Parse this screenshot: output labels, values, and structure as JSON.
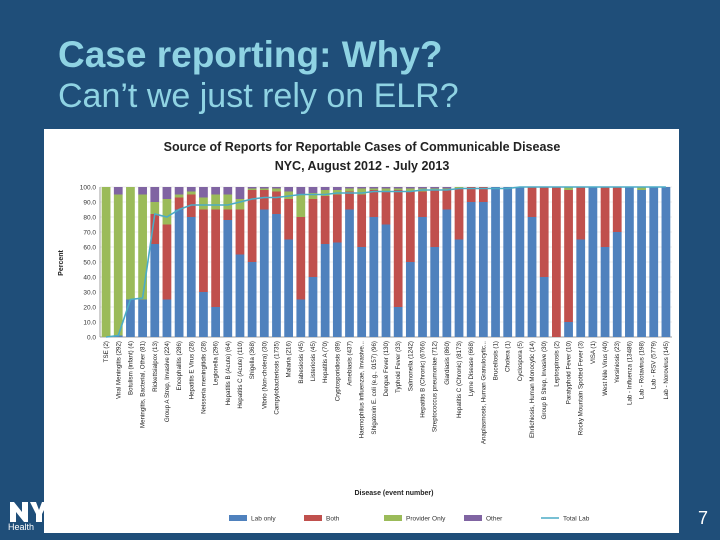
{
  "slide": {
    "title_line1": "Case reporting: Why?",
    "title_line2": "Can’t we just rely on ELR?",
    "page_number": "7",
    "logo_text": "Health"
  },
  "colors": {
    "lab": "#4f81bd",
    "both": "#c0504d",
    "provider": "#9bbb59",
    "other": "#8064a2",
    "total_lab": "#4bacc6"
  },
  "chart_data": {
    "type": "bar",
    "stacked": true,
    "title": "Source of Reports for Reportable Cases of Communicable Disease",
    "subtitle": "NYC, August 2012 - July 2013",
    "xlabel": "Disease (event number)",
    "ylabel": "Percent",
    "ylim": [
      0,
      100
    ],
    "yticks": [
      "0.0",
      "10.0",
      "20.0",
      "30.0",
      "40.0",
      "50.0",
      "60.0",
      "70.0",
      "80.0",
      "90.0",
      "100.0"
    ],
    "legend_position": "bottom",
    "categories": [
      "TSE (2)",
      "Viral Meningitis (292)",
      "Botulism (infant) (4)",
      "Meningitis, Bacterial, Other (81)",
      "Rickettsialpox (13)",
      "Group A Strep, Invasive (224)",
      "Encephalitis (286)",
      "Hepatitis E Virus (28)",
      "Neisseria meningitidis (28)",
      "Legionella (296)",
      "Hepatitis B (Acute) (64)",
      "Hepatitis C (Acute) (110)",
      "Shigella (368)",
      "Vibrio (Non-cholera) (30)",
      "Campylobacteriosis (1735)",
      "Malaria (216)",
      "Babesiosis (45)",
      "Listeriosis (45)",
      "Hepatitis A (70)",
      "Cryptosporidiosis (89)",
      "Amebiasis (437)",
      "Haemophilus influenzae, Invasive...",
      "Shigatoxin E. coli (e.g., 0157) (96)",
      "Dengue Fever (130)",
      "Typhoid Fever (33)",
      "Salmonella (1242)",
      "Hepatitis B (Chronic) (6766)",
      "Streptococcus pneumoniae (712)",
      "Giardiasis (860)",
      "Hepatitis C (Chronic) (8173)",
      "Lyme Disease (668)",
      "Anaplasmosis, Human Granulocytic...",
      "Brucellosis (1)",
      "Cholera (1)",
      "Cyclospora (5)",
      "Ehrlichiosis, Human Monocytic (14)",
      "Group B Strep, Invasive (30)",
      "Leptospirosis (2)",
      "Paratyphoid Fever (10)",
      "Rocky Mountain Spotted Fever (3)",
      "VISA (1)",
      "West Nile Virus (40)",
      "Yersiniosis (23)",
      "Lab - Influenza (13486)",
      "Lab - Rotavirus (198)",
      "Lab - RSV (5779)",
      "Lab - Norovirus (145)"
    ],
    "series": [
      {
        "name": "Lab only",
        "values": [
          0,
          1,
          25,
          25,
          62,
          25,
          85,
          80,
          30,
          20,
          78,
          55,
          50,
          85,
          82,
          65,
          25,
          40,
          62,
          63,
          85,
          60,
          80,
          75,
          20,
          50,
          80,
          60,
          85,
          65,
          90,
          90,
          100,
          100,
          100,
          80,
          40,
          0,
          10,
          65,
          100,
          60,
          70,
          100,
          98,
          100,
          100
        ]
      },
      {
        "name": "Both",
        "values": [
          0,
          0,
          0,
          0,
          20,
          50,
          8,
          15,
          55,
          65,
          7,
          30,
          48,
          13,
          15,
          27,
          55,
          52,
          32,
          32,
          12,
          35,
          18,
          22,
          78,
          47,
          17,
          38,
          13,
          34,
          10,
          10,
          0,
          0,
          0,
          20,
          60,
          100,
          88,
          35,
          0,
          40,
          30,
          0,
          0,
          0,
          0
        ]
      },
      {
        "name": "Provider Only",
        "values": [
          100,
          94,
          75,
          70,
          8,
          17,
          2,
          2,
          8,
          10,
          10,
          7,
          1,
          1,
          2,
          5,
          15,
          4,
          4,
          3,
          2,
          4,
          1,
          2,
          1,
          2,
          2,
          1,
          1,
          1,
          0,
          0,
          0,
          0,
          0,
          0,
          0,
          0,
          2,
          0,
          0,
          0,
          0,
          0,
          2,
          0,
          0
        ]
      },
      {
        "name": "Other",
        "values": [
          0,
          5,
          0,
          5,
          10,
          8,
          5,
          3,
          7,
          5,
          5,
          8,
          1,
          1,
          1,
          3,
          5,
          4,
          2,
          2,
          1,
          1,
          1,
          1,
          1,
          1,
          1,
          1,
          1,
          0,
          0,
          0,
          0,
          0,
          0,
          0,
          0,
          0,
          0,
          0,
          0,
          0,
          0,
          0,
          0,
          0,
          0
        ]
      }
    ],
    "line_series": {
      "name": "Total Lab",
      "values": [
        0,
        1,
        25,
        26,
        82,
        80,
        85,
        88,
        88,
        88,
        88,
        90,
        92,
        93,
        93,
        94,
        95,
        95,
        95,
        96,
        96,
        96,
        97,
        97,
        97,
        97,
        98,
        98,
        98,
        99,
        99,
        99,
        99,
        99,
        100,
        100,
        100,
        100,
        100,
        100,
        100,
        100,
        100,
        100,
        100,
        100,
        100
      ]
    }
  }
}
